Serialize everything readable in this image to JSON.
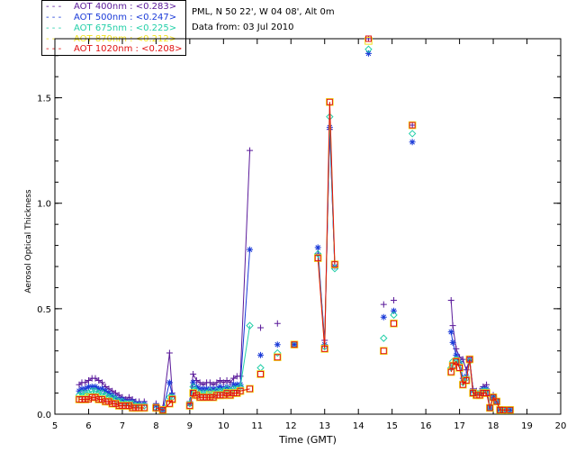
{
  "header": {
    "station": "PML, N 50 22', W 04 08', Alt 0m",
    "date": "Data from: 03 Jul 2010"
  },
  "legend": [
    {
      "label": "AOT  400nm : <0.283>",
      "color": "#5a1a9a"
    },
    {
      "label": "AOT  500nm : <0.247>",
      "color": "#1a3ad8"
    },
    {
      "label": "AOT  675nm : <0.225>",
      "color": "#22cfa8"
    },
    {
      "label": "AOT  870nm : <0.212>",
      "color": "#f0e020"
    },
    {
      "label": "AOT 1020nm : <0.208>",
      "color": "#e01010"
    }
  ],
  "chart_data": {
    "type": "scatter",
    "title": "",
    "xlabel": "Time (GMT)",
    "ylabel": "Aerosol Optical Thickness",
    "xlim": [
      5,
      20
    ],
    "ylim": [
      0,
      1.78
    ],
    "xticks": [
      5,
      6,
      7,
      8,
      9,
      10,
      11,
      12,
      13,
      14,
      15,
      16,
      17,
      18,
      19,
      20
    ],
    "yticks": [
      0.0,
      0.5,
      1.0,
      1.5
    ],
    "ytick_labels": [
      "0.0",
      "0.5",
      "1.0",
      "1.5"
    ],
    "series": [
      {
        "name": "AOT 400nm",
        "marker": "plus",
        "color": "#5a1a9a",
        "x": [
          5.72,
          5.8,
          5.9,
          6.0,
          6.1,
          6.2,
          6.3,
          6.4,
          6.5,
          6.6,
          6.7,
          6.8,
          6.9,
          7.0,
          7.1,
          7.2,
          7.3,
          7.4,
          7.5,
          7.65,
          8.0,
          8.2,
          8.4,
          8.48,
          9.0,
          9.1,
          9.2,
          9.3,
          9.4,
          9.5,
          9.6,
          9.7,
          9.8,
          9.9,
          10.0,
          10.1,
          10.2,
          10.3,
          10.4,
          10.5,
          10.78,
          11.1,
          11.6,
          12.1,
          12.8,
          13.0,
          13.15,
          13.3,
          14.3,
          14.75,
          15.05,
          15.6,
          16.75,
          16.8,
          16.9,
          17.0,
          17.1,
          17.2,
          17.3,
          17.4,
          17.5,
          17.6,
          17.7,
          17.8,
          17.9,
          18.0,
          18.1,
          18.2,
          18.3,
          18.5
        ],
        "y": [
          0.14,
          0.15,
          0.15,
          0.16,
          0.17,
          0.17,
          0.16,
          0.15,
          0.13,
          0.12,
          0.11,
          0.1,
          0.09,
          0.08,
          0.07,
          0.08,
          0.07,
          0.06,
          0.06,
          0.06,
          0.05,
          0.03,
          0.29,
          0.1,
          0.06,
          0.19,
          0.16,
          0.15,
          0.14,
          0.15,
          0.15,
          0.14,
          0.15,
          0.16,
          0.15,
          0.16,
          0.15,
          0.17,
          0.18,
          0.18,
          1.25,
          0.41,
          0.43,
          0.33,
          0.76,
          0.35,
          1.35,
          0.7,
          1.78,
          0.52,
          0.54,
          1.37,
          0.54,
          0.42,
          0.31,
          0.27,
          0.26,
          0.21,
          0.26,
          0.12,
          0.11,
          0.11,
          0.13,
          0.14,
          0.03,
          0.09,
          0.07,
          0.02,
          0.02,
          0.02
        ]
      },
      {
        "name": "AOT 500nm",
        "marker": "star",
        "color": "#1a3ad8",
        "x": [
          5.72,
          5.8,
          5.9,
          6.0,
          6.1,
          6.2,
          6.3,
          6.4,
          6.5,
          6.6,
          6.7,
          6.8,
          6.9,
          7.0,
          7.1,
          7.2,
          7.3,
          7.4,
          7.5,
          7.65,
          8.0,
          8.2,
          8.4,
          8.48,
          9.0,
          9.1,
          9.2,
          9.3,
          9.4,
          9.5,
          9.6,
          9.7,
          9.8,
          9.9,
          10.0,
          10.1,
          10.2,
          10.3,
          10.4,
          10.5,
          10.78,
          11.1,
          11.6,
          12.1,
          12.8,
          13.0,
          13.15,
          13.3,
          14.3,
          14.75,
          15.05,
          15.6,
          16.75,
          16.8,
          16.9,
          17.0,
          17.1,
          17.2,
          17.3,
          17.4,
          17.5,
          17.6,
          17.7,
          17.8,
          17.9,
          18.0,
          18.1,
          18.2,
          18.3,
          18.5
        ],
        "y": [
          0.11,
          0.12,
          0.12,
          0.13,
          0.13,
          0.13,
          0.12,
          0.12,
          0.11,
          0.1,
          0.09,
          0.08,
          0.07,
          0.07,
          0.06,
          0.06,
          0.06,
          0.05,
          0.05,
          0.05,
          0.04,
          0.02,
          0.15,
          0.09,
          0.05,
          0.15,
          0.13,
          0.12,
          0.12,
          0.12,
          0.12,
          0.12,
          0.12,
          0.13,
          0.12,
          0.13,
          0.12,
          0.14,
          0.14,
          0.14,
          0.78,
          0.28,
          0.33,
          0.33,
          0.79,
          0.33,
          1.36,
          0.7,
          1.71,
          0.46,
          0.49,
          1.29,
          0.39,
          0.34,
          0.28,
          0.25,
          0.17,
          0.18,
          0.26,
          0.11,
          0.1,
          0.1,
          0.12,
          0.12,
          0.03,
          0.08,
          0.06,
          0.02,
          0.02,
          0.02
        ]
      },
      {
        "name": "AOT 675nm",
        "marker": "diamond",
        "color": "#22cfa8",
        "x": [
          5.72,
          5.8,
          5.9,
          6.0,
          6.1,
          6.2,
          6.3,
          6.4,
          6.5,
          6.6,
          6.7,
          6.8,
          6.9,
          7.0,
          7.1,
          7.2,
          7.3,
          7.4,
          7.5,
          7.65,
          8.0,
          8.2,
          8.4,
          8.48,
          9.0,
          9.1,
          9.2,
          9.3,
          9.4,
          9.5,
          9.6,
          9.7,
          9.8,
          9.9,
          10.0,
          10.1,
          10.2,
          10.3,
          10.4,
          10.5,
          10.78,
          11.1,
          11.6,
          12.1,
          12.8,
          13.0,
          13.15,
          13.3,
          14.3,
          14.75,
          15.05,
          15.6,
          16.75,
          16.8,
          16.9,
          17.0,
          17.1,
          17.2,
          17.3,
          17.4,
          17.5,
          17.6,
          17.7,
          17.8,
          17.9,
          18.0,
          18.1,
          18.2,
          18.3,
          18.5
        ],
        "y": [
          0.09,
          0.1,
          0.1,
          0.1,
          0.11,
          0.11,
          0.1,
          0.1,
          0.09,
          0.08,
          0.08,
          0.07,
          0.06,
          0.06,
          0.05,
          0.05,
          0.05,
          0.04,
          0.04,
          0.04,
          0.03,
          0.02,
          0.08,
          0.08,
          0.05,
          0.13,
          0.11,
          0.1,
          0.1,
          0.1,
          0.11,
          0.1,
          0.11,
          0.11,
          0.11,
          0.12,
          0.11,
          0.12,
          0.12,
          0.13,
          0.42,
          0.22,
          0.29,
          0.33,
          0.76,
          0.32,
          1.41,
          0.69,
          1.73,
          0.36,
          0.47,
          1.33,
          0.22,
          0.25,
          0.26,
          0.24,
          0.15,
          0.17,
          0.25,
          0.1,
          0.1,
          0.1,
          0.11,
          0.11,
          0.03,
          0.08,
          0.06,
          0.02,
          0.02,
          0.02
        ]
      },
      {
        "name": "AOT 870nm",
        "marker": "square",
        "color": "#f0e020",
        "x": [
          5.72,
          5.8,
          5.9,
          6.0,
          6.1,
          6.2,
          6.3,
          6.4,
          6.5,
          6.6,
          6.7,
          6.8,
          6.9,
          7.0,
          7.1,
          7.2,
          7.3,
          7.4,
          7.5,
          7.65,
          8.0,
          8.2,
          8.4,
          8.48,
          9.0,
          9.1,
          9.2,
          9.3,
          9.4,
          9.5,
          9.6,
          9.7,
          9.8,
          9.9,
          10.0,
          10.1,
          10.2,
          10.3,
          10.4,
          10.5,
          10.78,
          11.1,
          11.6,
          12.1,
          12.8,
          13.0,
          13.15,
          13.3,
          14.3,
          14.75,
          15.05,
          15.6,
          16.75,
          16.8,
          16.9,
          17.0,
          17.1,
          17.2,
          17.3,
          17.4,
          17.5,
          17.6,
          17.7,
          17.8,
          17.9,
          18.0,
          18.1,
          18.2,
          18.3,
          18.5
        ],
        "y": [
          0.07,
          0.07,
          0.07,
          0.08,
          0.08,
          0.08,
          0.07,
          0.07,
          0.06,
          0.06,
          0.05,
          0.05,
          0.04,
          0.04,
          0.04,
          0.04,
          0.03,
          0.03,
          0.03,
          0.03,
          0.03,
          0.02,
          0.05,
          0.07,
          0.04,
          0.1,
          0.09,
          0.08,
          0.08,
          0.08,
          0.09,
          0.08,
          0.09,
          0.09,
          0.09,
          0.1,
          0.09,
          0.1,
          0.1,
          0.11,
          0.12,
          0.19,
          0.27,
          0.33,
          0.74,
          0.31,
          1.48,
          0.71,
          1.77,
          0.3,
          0.43,
          1.37,
          0.2,
          0.23,
          0.25,
          0.22,
          0.14,
          0.16,
          0.26,
          0.1,
          0.09,
          0.09,
          0.1,
          0.1,
          0.03,
          0.08,
          0.06,
          0.02,
          0.02,
          0.02
        ]
      },
      {
        "name": "AOT 1020nm",
        "marker": "square",
        "color": "#e01010",
        "x": [
          5.72,
          5.8,
          5.9,
          6.0,
          6.1,
          6.2,
          6.3,
          6.4,
          6.5,
          6.6,
          6.7,
          6.8,
          6.9,
          7.0,
          7.1,
          7.2,
          7.3,
          7.4,
          7.5,
          7.65,
          8.0,
          8.2,
          8.4,
          8.48,
          9.0,
          9.1,
          9.2,
          9.3,
          9.4,
          9.5,
          9.6,
          9.7,
          9.8,
          9.9,
          10.0,
          10.1,
          10.2,
          10.3,
          10.4,
          10.5,
          10.78,
          11.1,
          11.6,
          12.1,
          12.8,
          13.0,
          13.15,
          13.3,
          14.3,
          14.75,
          15.05,
          15.6,
          16.75,
          16.8,
          16.9,
          17.0,
          17.1,
          17.2,
          17.3,
          17.4,
          17.5,
          17.6,
          17.7,
          17.8,
          17.9,
          18.0,
          18.1,
          18.2,
          18.3,
          18.5
        ],
        "y": [
          0.07,
          0.07,
          0.07,
          0.07,
          0.08,
          0.08,
          0.07,
          0.07,
          0.06,
          0.06,
          0.05,
          0.05,
          0.04,
          0.04,
          0.04,
          0.04,
          0.03,
          0.03,
          0.03,
          0.03,
          0.03,
          0.02,
          0.05,
          0.07,
          0.04,
          0.1,
          0.09,
          0.08,
          0.08,
          0.08,
          0.08,
          0.08,
          0.09,
          0.09,
          0.09,
          0.1,
          0.09,
          0.1,
          0.1,
          0.11,
          0.12,
          0.19,
          0.27,
          0.33,
          0.74,
          0.31,
          1.48,
          0.71,
          1.78,
          0.3,
          0.43,
          1.37,
          0.2,
          0.23,
          0.25,
          0.22,
          0.14,
          0.16,
          0.26,
          0.1,
          0.09,
          0.09,
          0.1,
          0.1,
          0.03,
          0.08,
          0.06,
          0.02,
          0.02,
          0.02
        ]
      }
    ]
  }
}
